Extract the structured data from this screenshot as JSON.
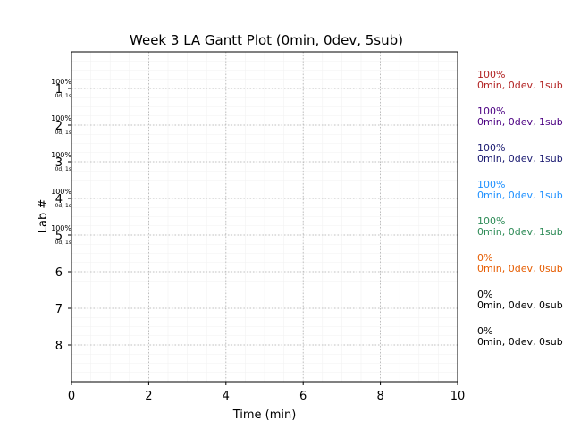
{
  "chart_data": {
    "type": "gantt",
    "title": "Week 3 LA Gantt Plot (0min, 0dev, 5sub)",
    "xlabel": "Time (min)",
    "ylabel": "Lab #",
    "xlim": [
      0,
      10
    ],
    "ylim": [
      0,
      9
    ],
    "x_ticks": [
      "0",
      "2",
      "4",
      "6",
      "8",
      "10"
    ],
    "grid": true,
    "labs": [
      {
        "label": "1",
        "percent": "100%",
        "sub": "0d, 1s",
        "summary": "0min, 0dev, 1sub",
        "color": "#b22222"
      },
      {
        "label": "2",
        "percent": "100%",
        "sub": "0d, 1s",
        "summary": "0min, 0dev, 1sub",
        "color": "#4b0082"
      },
      {
        "label": "3",
        "percent": "100%",
        "sub": "0d, 1s",
        "summary": "0min, 0dev, 1sub",
        "color": "#191970"
      },
      {
        "label": "4",
        "percent": "100%",
        "sub": "0d, 1s",
        "summary": "0min, 0dev, 1sub",
        "color": "#1e90ff"
      },
      {
        "label": "5",
        "percent": "100%",
        "sub": "0d, 1s",
        "summary": "0min, 0dev, 1sub",
        "color": "#2e8b57"
      },
      {
        "label": "6",
        "percent": "",
        "sub": "",
        "summary": "0min, 0dev, 0sub",
        "legend_percent": "0%",
        "color": "#e65c00"
      },
      {
        "label": "7",
        "percent": "",
        "sub": "",
        "summary": "0min, 0dev, 0sub",
        "legend_percent": "0%",
        "color": "#000000"
      },
      {
        "label": "8",
        "percent": "",
        "sub": "",
        "summary": "0min, 0dev, 0sub",
        "legend_percent": "0%",
        "color": "#000000"
      }
    ]
  }
}
